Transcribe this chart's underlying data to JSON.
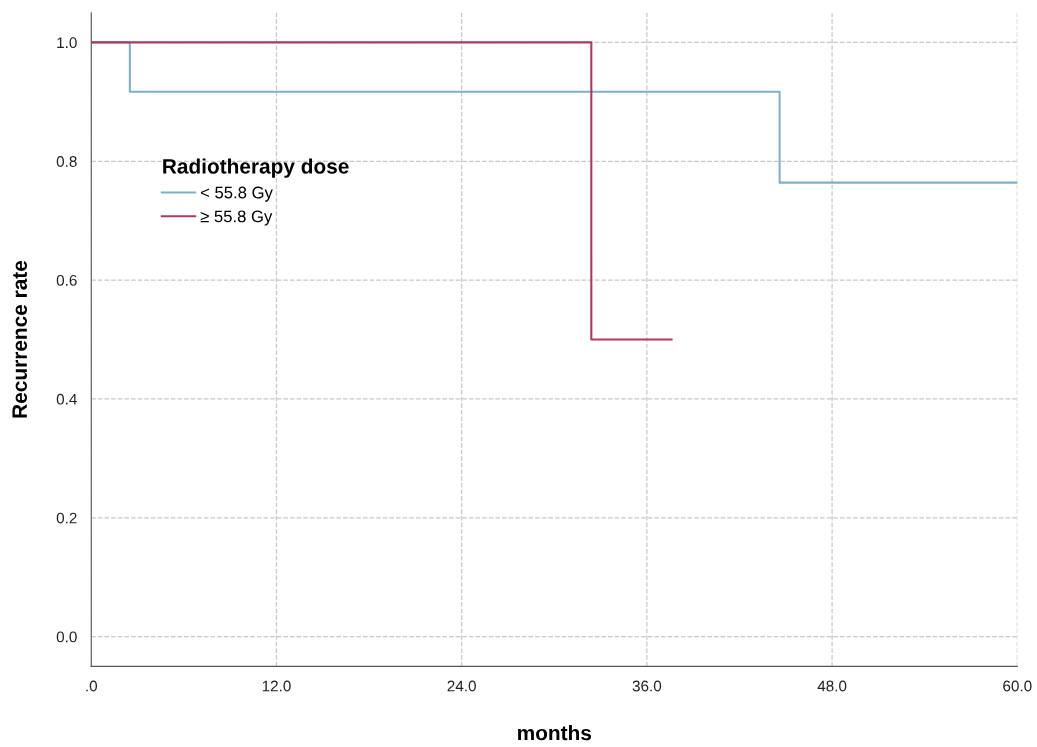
{
  "chart_data": {
    "type": "step",
    "xlabel": "months",
    "ylabel": "Recurrence rate",
    "legend_title": "Radiotherapy dose",
    "legend": "top left",
    "grid": true,
    "line_style": "solid",
    "marker": "none",
    "xlim": [
      0,
      60
    ],
    "ylim": [
      -0.05,
      1.05
    ],
    "xticks": [
      {
        "value": 0,
        "label": ".0"
      },
      {
        "value": 12,
        "label": "12.0"
      },
      {
        "value": 24,
        "label": "24.0"
      },
      {
        "value": 36,
        "label": "36.0"
      },
      {
        "value": 48,
        "label": "48.0"
      },
      {
        "value": 60,
        "label": "60.0"
      }
    ],
    "yticks": [
      {
        "value": 0,
        "label": "0.0"
      },
      {
        "value": 0.2,
        "label": "0.2"
      },
      {
        "value": 0.4,
        "label": "0.4"
      },
      {
        "value": 0.6,
        "label": "0.6"
      },
      {
        "value": 0.8,
        "label": "0.8"
      },
      {
        "value": 1,
        "label": "1.0"
      }
    ],
    "series": [
      {
        "name": "< 55.8 Gy",
        "color": "#7fb0c4",
        "x": [
          0,
          2.5,
          44.6,
          60
        ],
        "values": [
          1.0,
          0.917,
          0.764,
          0.764
        ]
      },
      {
        "name": "≥ 55.8 Gy",
        "color": "#b0385f",
        "x": [
          0,
          32.4,
          37.6
        ],
        "values": [
          1.0,
          0.5,
          0.5
        ]
      }
    ]
  }
}
